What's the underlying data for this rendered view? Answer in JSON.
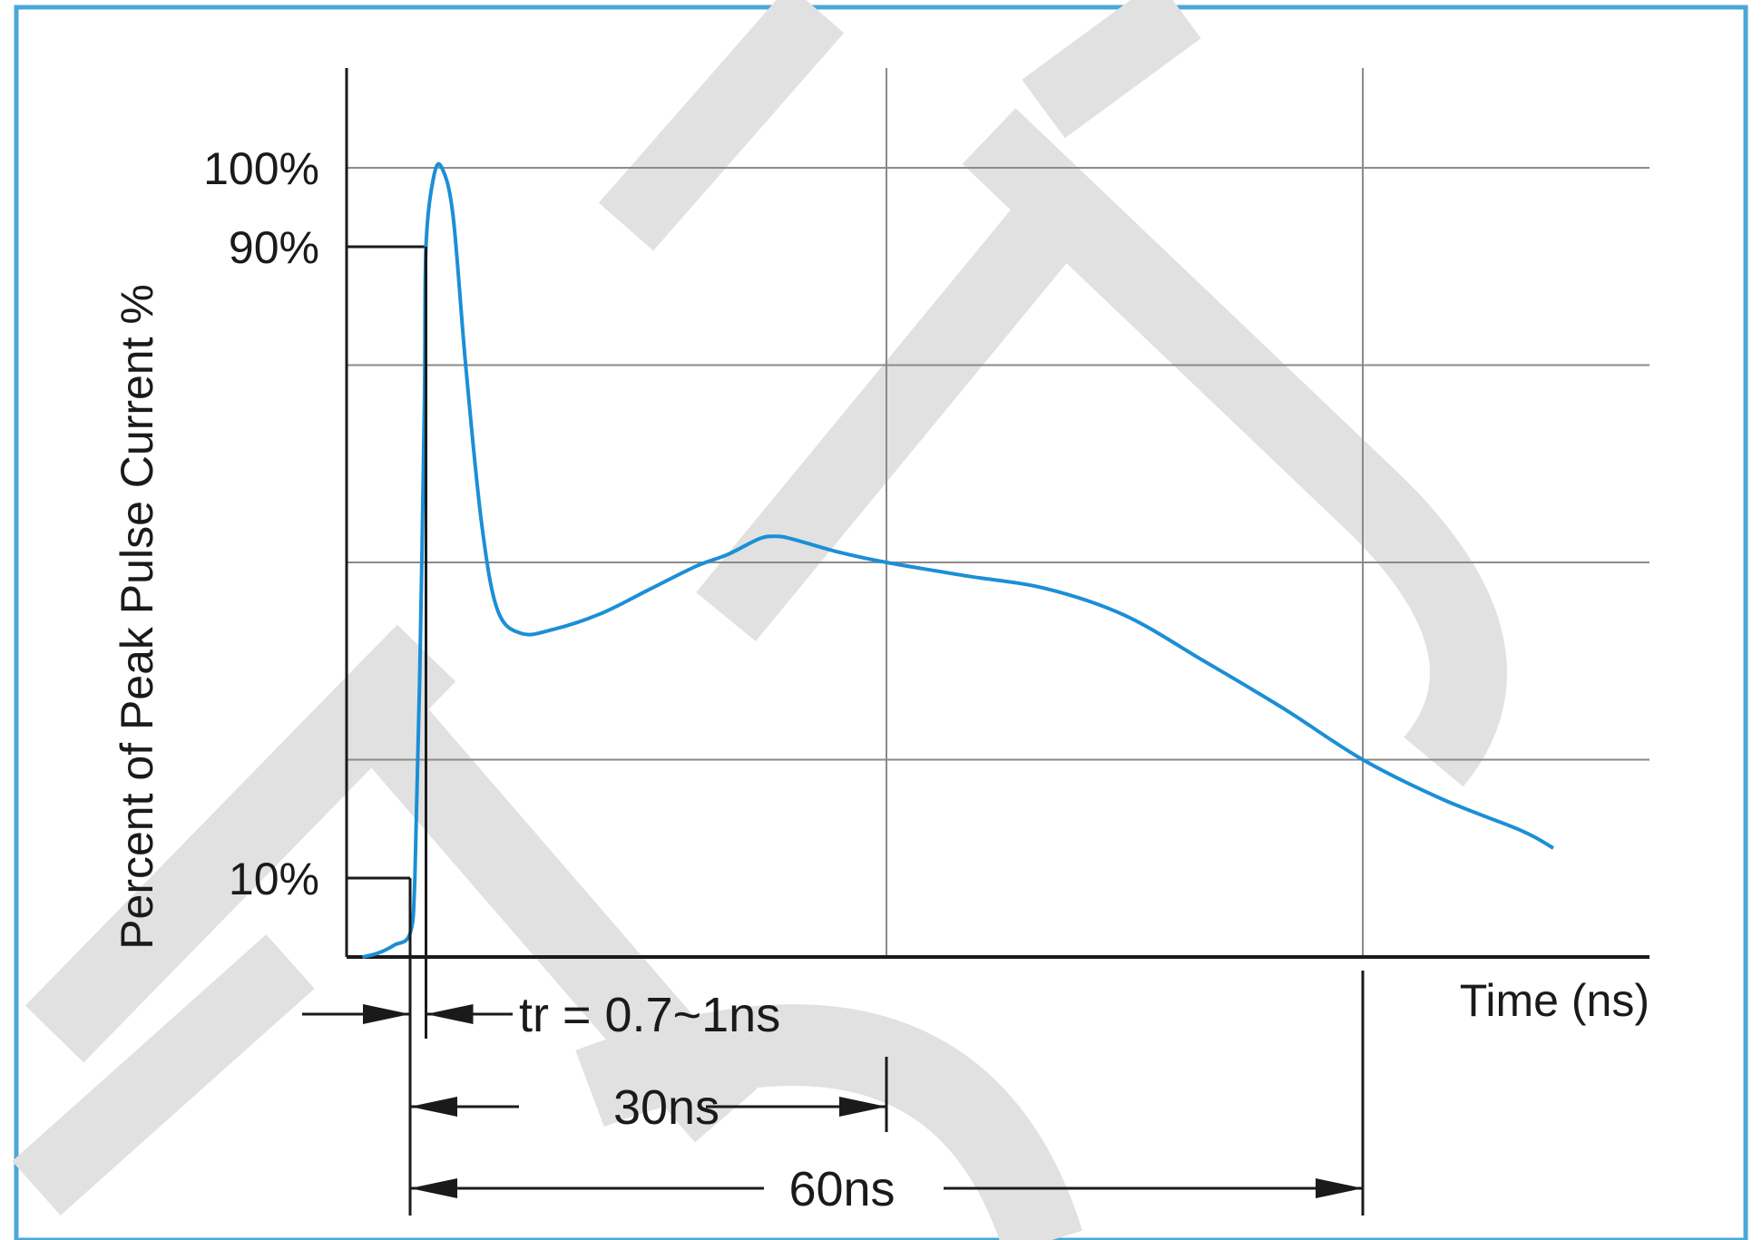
{
  "chart_data": {
    "type": "line",
    "title": "",
    "xlabel": "Time (ns)",
    "ylabel": "Percent of Peak Pulse Current %",
    "xlim": [
      -3,
      80
    ],
    "ylim": [
      0,
      112
    ],
    "grid": true,
    "legend": "none",
    "x_gridlines": [
      30,
      60
    ],
    "y_gridlines": [
      25,
      50,
      75,
      100
    ],
    "y_tick_labels": [
      {
        "value": 100,
        "label": "100%"
      },
      {
        "value": 90,
        "label": "90%"
      },
      {
        "value": 10,
        "label": "10%"
      }
    ],
    "series": [
      {
        "color": "#1b8fd6",
        "points": [
          [
            -3,
            0
          ],
          [
            -2,
            0.5
          ],
          [
            -1,
            1.5
          ],
          [
            0,
            3
          ],
          [
            0.3,
            10
          ],
          [
            0.6,
            35
          ],
          [
            0.9,
            70
          ],
          [
            1,
            90
          ],
          [
            1.5,
            99
          ],
          [
            2,
            100
          ],
          [
            2.7,
            94
          ],
          [
            3.5,
            75
          ],
          [
            4.5,
            55
          ],
          [
            5.5,
            44
          ],
          [
            7,
            41
          ],
          [
            9,
            41.5
          ],
          [
            12,
            43.5
          ],
          [
            15,
            46.5
          ],
          [
            18,
            49.5
          ],
          [
            20,
            51
          ],
          [
            22,
            53
          ],
          [
            23,
            53.3
          ],
          [
            24,
            53
          ],
          [
            27,
            51.3
          ],
          [
            30,
            50
          ],
          [
            35,
            48.3
          ],
          [
            40,
            46.7
          ],
          [
            45,
            43.3
          ],
          [
            50,
            37.5
          ],
          [
            55,
            31.5
          ],
          [
            60,
            25
          ],
          [
            65,
            20
          ],
          [
            70,
            16
          ],
          [
            72,
            13.8
          ]
        ]
      }
    ],
    "annotations": [
      {
        "text": "tr = 0.7~1ns",
        "from": 0,
        "to": 1
      },
      {
        "text": "30ns",
        "from": 0,
        "to": 30
      },
      {
        "text": "60ns",
        "from": 0,
        "to": 60
      }
    ]
  },
  "colors": {
    "frame": "#4aa8d8",
    "curve": "#1b8fd6",
    "grid": "#8a8a8a",
    "axis": "#1a1a1a",
    "watermark": "#d9d9d9"
  }
}
